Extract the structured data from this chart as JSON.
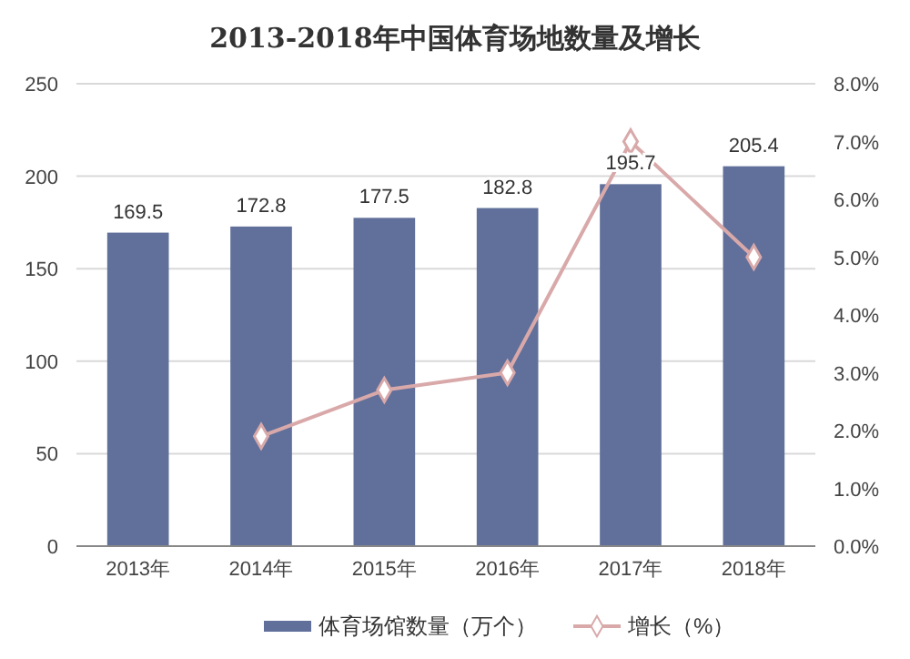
{
  "chart_data": {
    "type": "bar",
    "title": "2013-2018年中国体育场地数量及增长",
    "categories": [
      "2013年",
      "2014年",
      "2015年",
      "2016年",
      "2017年",
      "2018年"
    ],
    "series": [
      {
        "name": "体育场馆数量（万个）",
        "color": "#61709a",
        "values": [
          169.5,
          172.8,
          177.5,
          182.8,
          195.7,
          205.4
        ],
        "value_labels": [
          "169.5",
          "172.8",
          "177.5",
          "182.8",
          "195.7",
          "205.4"
        ]
      },
      {
        "name": "增长（%）",
        "type": "line",
        "axis": "y2",
        "color": "#d9a9aa",
        "marker": "diamond",
        "values": [
          null,
          1.9,
          2.7,
          3.0,
          7.0,
          5.0
        ]
      }
    ],
    "ylim": [
      0,
      250
    ],
    "yticks": [
      0,
      50,
      100,
      150,
      200,
      250
    ],
    "y2lim": [
      0,
      8
    ],
    "y2ticks": [
      {
        "value": 0,
        "label": "0.0%"
      },
      {
        "value": 1,
        "label": "1.0%"
      },
      {
        "value": 2,
        "label": "2.0%"
      },
      {
        "value": 3,
        "label": "3.0%"
      },
      {
        "value": 4,
        "label": "4.0%"
      },
      {
        "value": 5,
        "label": "5.0%"
      },
      {
        "value": 6,
        "label": "6.0%"
      },
      {
        "value": 7,
        "label": "7.0%"
      },
      {
        "value": 8,
        "label": "8.0%"
      }
    ],
    "grid": "y",
    "legend": "bottom"
  }
}
